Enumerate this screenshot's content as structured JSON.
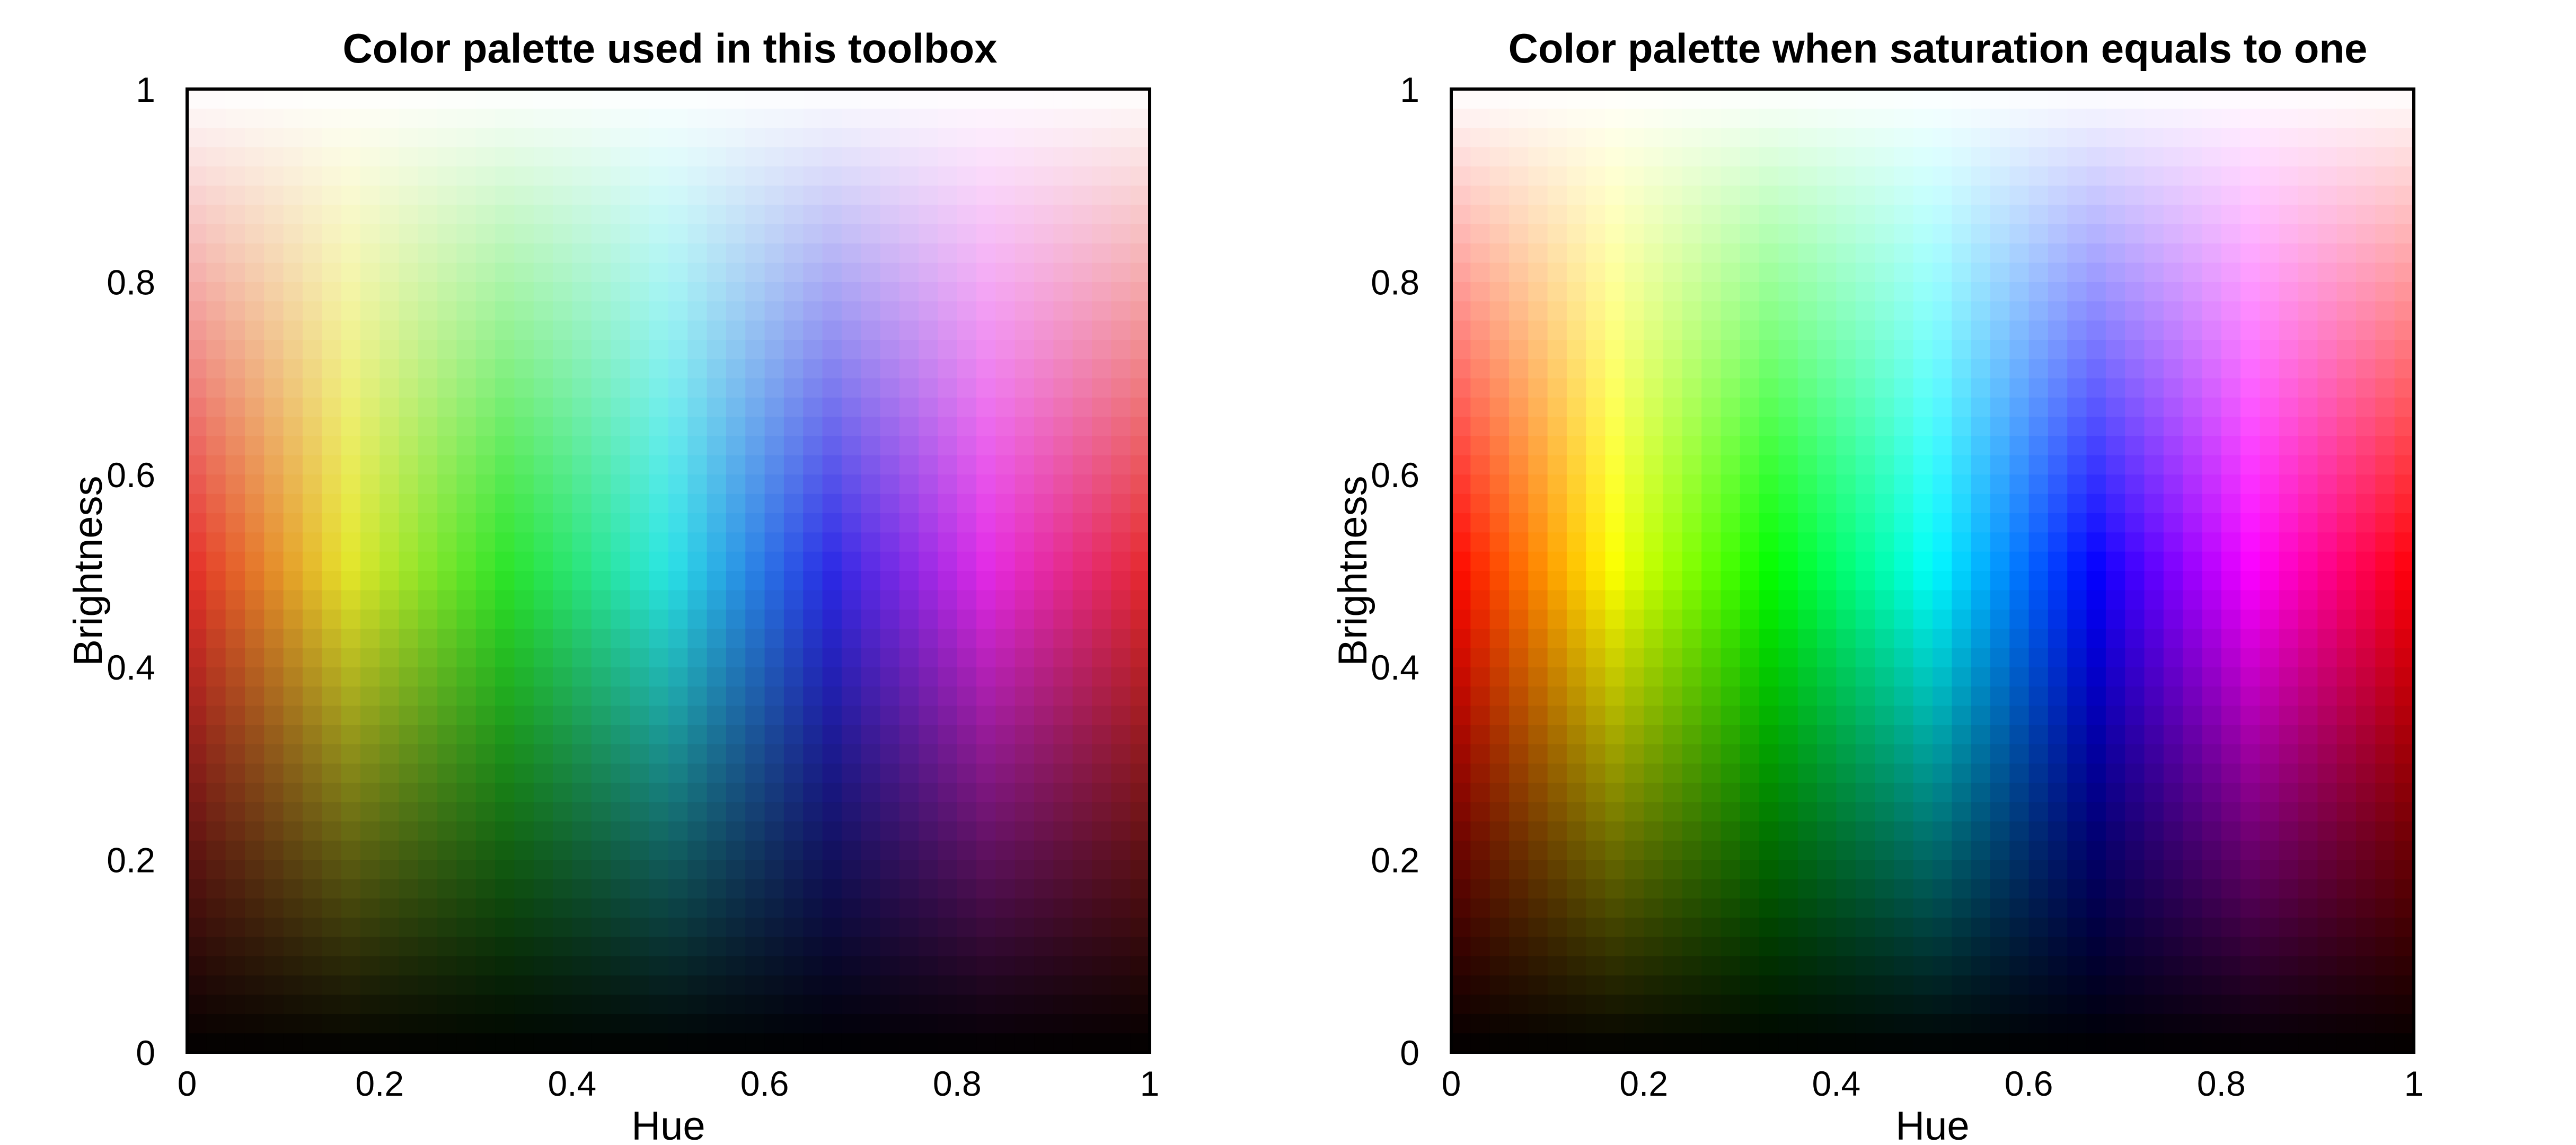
{
  "figure": {
    "background": "#ffffff"
  },
  "chart_data": [
    {
      "type": "heatmap",
      "title": "Color palette used in this toolbox",
      "xlabel": "Hue",
      "ylabel": "Brightness",
      "xlim": [
        0,
        1
      ],
      "ylim": [
        0,
        1
      ],
      "xticks": [
        0,
        0.2,
        0.4,
        0.6,
        0.8,
        1
      ],
      "yticks": [
        0,
        0.2,
        0.4,
        0.6,
        0.8,
        1
      ],
      "xtick_labels": [
        "0",
        "0.2",
        "0.4",
        "0.6",
        "0.8",
        "1"
      ],
      "ytick_labels": [
        "0",
        "0.2",
        "0.4",
        "0.6",
        "0.8",
        "1"
      ],
      "grid": false,
      "hue_steps": 50,
      "brightness_steps": 50,
      "saturation": "reduced (toolbox palette)",
      "anchor_colors": {
        "hue_0_mid": "#e00000",
        "hue_0.17_mid": "#e8e000",
        "hue_0.33_mid": "#30c000",
        "hue_0.5_mid": "#30b0b0",
        "hue_0.67_mid": "#0000f0",
        "hue_0.83_mid": "#c000c0",
        "top": "#ffffff",
        "bottom": "#000000"
      }
    },
    {
      "type": "heatmap",
      "title": "Color palette when saturation equals to one",
      "xlabel": "Hue",
      "ylabel": "Brightness",
      "xlim": [
        0,
        1
      ],
      "ylim": [
        0,
        1
      ],
      "xticks": [
        0,
        0.2,
        0.4,
        0.6,
        0.8,
        1
      ],
      "yticks": [
        0,
        0.2,
        0.4,
        0.6,
        0.8,
        1
      ],
      "xtick_labels": [
        "0",
        "0.2",
        "0.4",
        "0.6",
        "0.8",
        "1"
      ],
      "ytick_labels": [
        "0",
        "0.2",
        "0.4",
        "0.6",
        "0.8",
        "1"
      ],
      "grid": false,
      "hue_steps": 50,
      "brightness_steps": 50,
      "saturation": 1,
      "anchor_colors": {
        "hue_0_mid": "#ff0000",
        "hue_0.17_mid": "#ffff00",
        "hue_0.33_mid": "#00ff00",
        "hue_0.5_mid": "#00ffff",
        "hue_0.67_mid": "#0000ff",
        "hue_0.83_mid": "#ff00ff",
        "top": "#ffffff",
        "bottom": "#000000"
      }
    }
  ]
}
